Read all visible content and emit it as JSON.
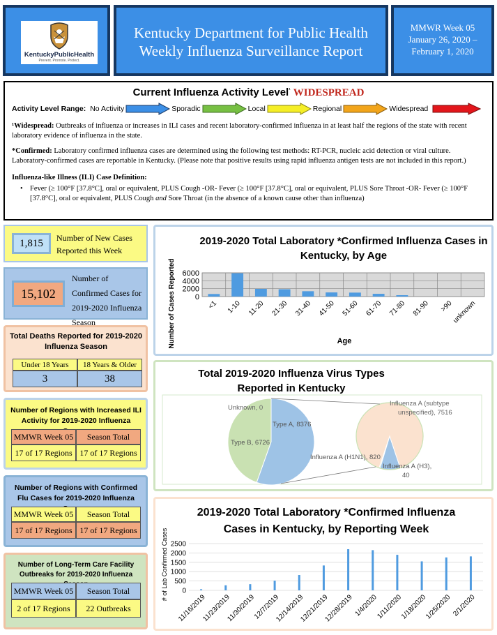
{
  "header": {
    "logo_text": "KentuckyPublicHealth",
    "logo_tagline": "Prevent. Promote. Protect.",
    "title_line1": "Kentucky Department for Public Health",
    "title_line2": "Weekly Influenza Surveillance Report",
    "week_line1": "MMWR Week 05",
    "week_line2": "January 26, 2020 –",
    "week_line3": "February 1, 2020"
  },
  "activity": {
    "title": "Current Influenza Activity Level",
    "title_sup": "¹",
    "level": "WIDESPREAD",
    "range_label": "Activity Level Range:",
    "levels": [
      "No Activity",
      "Sporadic",
      "Local",
      "Regional",
      "Widespread"
    ],
    "colors": {
      "no_activity": "#3c8fe6",
      "sporadic": "#77c043",
      "local": "#f5ee26",
      "regional": "#f2a51b",
      "widespread": "#e3161b"
    },
    "widespread_def_label": "¹Widespread:",
    "widespread_def": "Outbreaks of influenza or increases in ILI cases and recent laboratory-confirmed influenza in at least half the regions of the state with recent laboratory evidence of influenza in the state.",
    "confirmed_label": "*Confirmed:",
    "confirmed_def": "Laboratory confirmed influenza cases are determined using the following test methods: RT-PCR, nucleic acid detection or viral culture. Laboratory-confirmed cases are reportable in Kentucky. (Please note that positive results using rapid influenza antigen tests are not included in this report.)",
    "ili_label": "Influenza-like Illness (ILI) Case Definition:",
    "ili_bullet_part1": "Fever (≥ 100°F [37.8°C], oral or equivalent, PLUS Cough -OR- Fever (≥ 100°F [37.8°C], oral or equivalent, PLUS Sore Throat -OR- Fever (≥ 100°F [37.8°C], oral or equivalent, PLUS Cough",
    "ili_bullet_and": "and",
    "ili_bullet_part2": "Sore Throat (in the absence of a known cause other than influenza)"
  },
  "new_cases": {
    "value": "1,815",
    "label": "Number of New Cases Reported this Week"
  },
  "confirmed_cases": {
    "value": "15,102",
    "label": "Number of Confirmed Cases for 2019-2020 Influenza Season"
  },
  "deaths": {
    "title": "Total Deaths Reported for 2019-2020 Influenza Season",
    "col1": "Under 18 Years",
    "col2": "18 Years & Older",
    "val1": "3",
    "val2": "38"
  },
  "ili_regions": {
    "title": "Number of Regions with Increased ILI Activity for 2019-2020 Influenza Season",
    "col1": "MMWR Week 05",
    "col2": "Season Total",
    "val1": "17 of 17 Regions",
    "val2": "17 of 17 Regions"
  },
  "flu_regions": {
    "title": "Number of Regions with Confirmed Flu Cases for 2019-2020 Influenza Season",
    "col1": "MMWR Week 05",
    "col2": "Season Total",
    "val1": "17 of 17 Regions",
    "val2": "17 of 17 Regions"
  },
  "ltc": {
    "title": "Number of Long-Term Care Facility Outbreaks for 2019-2020 Influenza Season",
    "col1": "MMWR Week 05",
    "col2": "Season Total",
    "val1": "2 of 17 Regions",
    "val2": "22 Outbreaks"
  },
  "chart_data": [
    {
      "type": "bar",
      "title": "2019-2020 Total Laboratory *Confirmed Influenza Cases in Kentucky, by Age",
      "xlabel": "Age",
      "ylabel": "Number of Cases Reported",
      "categories": [
        "<1",
        "1-10",
        "11-20",
        "21-30",
        "31-40",
        "41-50",
        "51-60",
        "61-70",
        "71-80",
        "81-90",
        ">90",
        "unknown"
      ],
      "values": [
        650,
        5900,
        1950,
        1850,
        1350,
        1050,
        1000,
        700,
        350,
        0,
        0,
        0
      ],
      "ylim": [
        0,
        6000
      ],
      "yticks": [
        "0",
        "2000",
        "4000",
        "6000"
      ],
      "grid": true,
      "bar_color": "#4f9be0"
    },
    {
      "type": "pie",
      "title": "Total 2019-2020 Influenza Virus Types Reported in Kentucky",
      "main_slices": [
        {
          "label": "Type A",
          "value": 8376,
          "color": "#9ec3e6"
        },
        {
          "label": "Type B",
          "value": 6726,
          "color": "#c9e1b2"
        },
        {
          "label": "Unknown",
          "value": 0,
          "color": "#f5c9a0"
        }
      ],
      "sub_slices": [
        {
          "label": "Influenza A (subtype unspecified)",
          "value": 7516,
          "color": "#fbe2cf"
        },
        {
          "label": "Influenza A (H1N1)",
          "value": 820,
          "color": "#9ec3e6"
        },
        {
          "label": "Influenza A (H3)",
          "value": 40,
          "color": "#c9e1b2"
        }
      ],
      "text_labels": {
        "unknown": "Unknown, 0",
        "type_a": "Type A, 8376",
        "type_b": "Type B, 6726",
        "sub_unspecified_l1": "Influenza A (subtype",
        "sub_unspecified_l2": "unspecified), 7516",
        "h1n1": "Influenza A (H1N1), 820",
        "h3_l1": "Influenza A (H3),",
        "h3_l2": "40"
      }
    },
    {
      "type": "bar",
      "title": "2019-2020 Total Laboratory *Confirmed Influenza Cases in Kentucky, by Reporting Week",
      "ylabel": "# of Lab Confirmed Cases",
      "categories": [
        "11/16/2019",
        "11/23/2019",
        "11/30/2019",
        "12/7/2019",
        "12/14/2019",
        "12/21/2019",
        "12/28/2019",
        "1/4/2020",
        "1/11/2020",
        "1/18/2020",
        "1/25/2020",
        "2/1/2020"
      ],
      "values": [
        60,
        270,
        330,
        520,
        820,
        1330,
        2200,
        2150,
        1900,
        1550,
        1760,
        1815
      ],
      "ylim": [
        0,
        2500
      ],
      "yticks": [
        "0",
        "500",
        "1000",
        "1500",
        "2000",
        "2500"
      ],
      "grid": true,
      "bar_color": "#4f9be0"
    }
  ]
}
